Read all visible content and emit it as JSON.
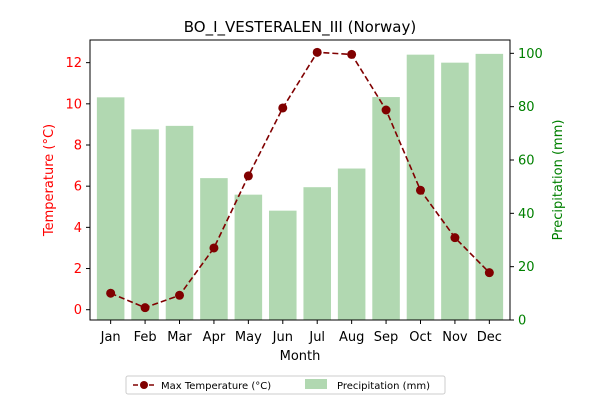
{
  "chart_data": {
    "type": "bar+line",
    "title": "BO_I_VESTERALEN_III (Norway)",
    "xlabel": "Month",
    "categories": [
      "Jan",
      "Feb",
      "Mar",
      "Apr",
      "May",
      "Jun",
      "Jul",
      "Aug",
      "Sep",
      "Oct",
      "Nov",
      "Dec"
    ],
    "left_axis": {
      "label": "Temperature (°C)",
      "ylim": [
        -0.5,
        13.1
      ],
      "ticks": [
        0,
        2,
        4,
        6,
        8,
        10,
        12
      ],
      "color": "#ff0000"
    },
    "right_axis": {
      "label": "Precipitation (mm)",
      "ylim": [
        0,
        105
      ],
      "ticks": [
        0,
        20,
        40,
        60,
        80,
        100
      ],
      "color": "#008000"
    },
    "series": [
      {
        "name": "Max Temperature (°C)",
        "type": "line",
        "axis": "left",
        "color": "#800000",
        "style": "dashed",
        "marker": "circle",
        "values": [
          0.8,
          0.1,
          0.7,
          3.0,
          6.5,
          9.8,
          12.5,
          12.4,
          9.7,
          5.8,
          3.5,
          1.8
        ]
      },
      {
        "name": "Precipitation (mm)",
        "type": "bar",
        "axis": "right",
        "color": "#b1d8b1",
        "values": [
          83.5,
          71.5,
          72.8,
          53.2,
          47.0,
          41.0,
          49.8,
          56.8,
          83.6,
          99.5,
          96.5,
          99.8
        ]
      }
    ],
    "grid": false,
    "legend_position": "bottom-center"
  }
}
